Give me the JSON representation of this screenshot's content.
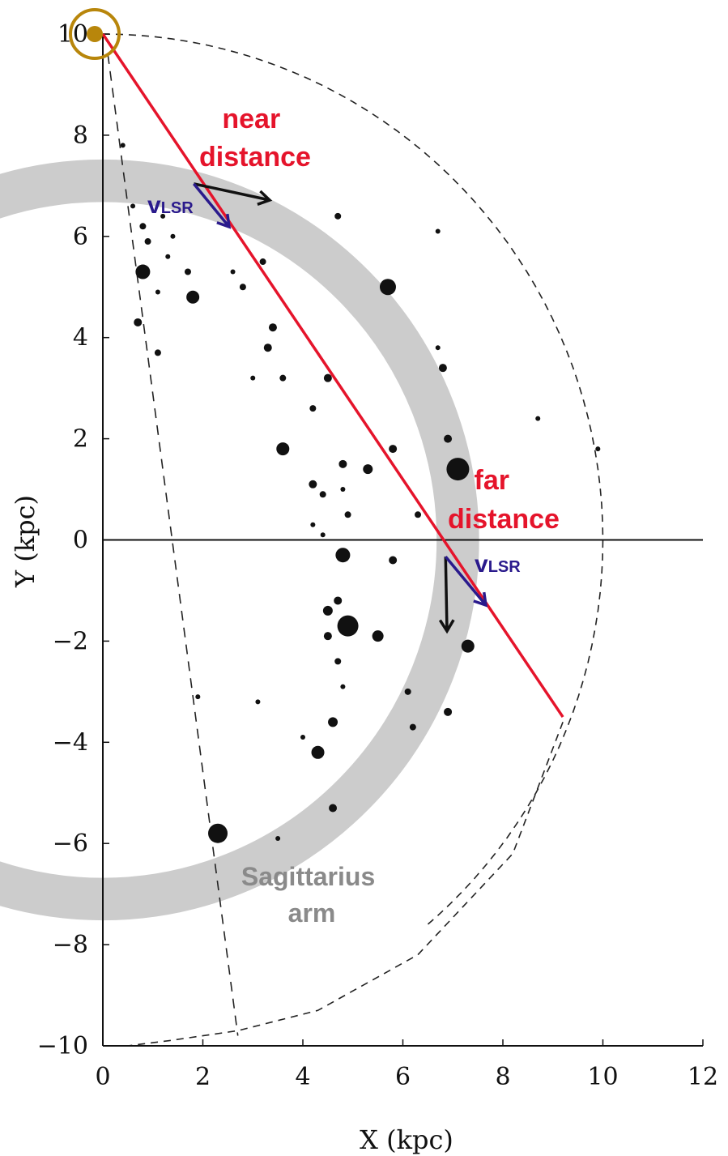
{
  "chart_data": {
    "type": "scatter",
    "xlabel": "X (kpc)",
    "ylabel": "Y (kpc)",
    "xlim": [
      0,
      12
    ],
    "ylim": [
      -10,
      10
    ],
    "x_ticks": [
      "0",
      "2",
      "4",
      "6",
      "8",
      "10",
      "12"
    ],
    "y_ticks": [
      "10",
      "8",
      "6",
      "4",
      "2",
      "0",
      "−2",
      "−4",
      "−6",
      "−8",
      "−10"
    ],
    "grid": false,
    "sun": {
      "x": 0,
      "y": 10
    },
    "sight_line": {
      "x1": 0,
      "y1": 10,
      "x2": 9.2,
      "y2": -3.5
    },
    "arm_radius_kpc": 7.1,
    "arm_width_kpc": 0.85,
    "outer_boundary_radius_kpc": 10,
    "annotations": {
      "near": "near\ndistance",
      "far": "far\ndistance",
      "vlsr_main": "v",
      "vlsr_sub": "LSR",
      "arm": "Sagittarius\narm"
    },
    "near_point": {
      "x": 1.9,
      "y": 7.2
    },
    "far_point": {
      "x": 7.0,
      "y": -0.25
    },
    "points": [
      {
        "x": 0.4,
        "y": 7.8,
        "s": 3
      },
      {
        "x": 0.6,
        "y": 6.6,
        "s": 3
      },
      {
        "x": 0.8,
        "y": 6.2,
        "s": 4
      },
      {
        "x": 1.2,
        "y": 6.4,
        "s": 3
      },
      {
        "x": 1.4,
        "y": 6.0,
        "s": 3
      },
      {
        "x": 0.9,
        "y": 5.9,
        "s": 4
      },
      {
        "x": 1.3,
        "y": 5.6,
        "s": 3
      },
      {
        "x": 0.8,
        "y": 5.3,
        "s": 9
      },
      {
        "x": 1.7,
        "y": 5.3,
        "s": 4
      },
      {
        "x": 1.1,
        "y": 4.9,
        "s": 3
      },
      {
        "x": 1.8,
        "y": 4.8,
        "s": 8
      },
      {
        "x": 2.6,
        "y": 5.3,
        "s": 3
      },
      {
        "x": 2.8,
        "y": 5.0,
        "s": 4
      },
      {
        "x": 3.2,
        "y": 5.5,
        "s": 4
      },
      {
        "x": 0.7,
        "y": 4.3,
        "s": 5
      },
      {
        "x": 1.1,
        "y": 3.7,
        "s": 4
      },
      {
        "x": 3.4,
        "y": 4.2,
        "s": 5
      },
      {
        "x": 3.3,
        "y": 3.8,
        "s": 5
      },
      {
        "x": 3.6,
        "y": 3.2,
        "s": 4
      },
      {
        "x": 4.5,
        "y": 3.2,
        "s": 5
      },
      {
        "x": 3.0,
        "y": 3.2,
        "s": 3
      },
      {
        "x": 4.2,
        "y": 2.6,
        "s": 4
      },
      {
        "x": 3.6,
        "y": 1.8,
        "s": 8
      },
      {
        "x": 4.8,
        "y": 1.5,
        "s": 5
      },
      {
        "x": 5.3,
        "y": 1.4,
        "s": 6
      },
      {
        "x": 5.8,
        "y": 1.8,
        "s": 5
      },
      {
        "x": 4.2,
        "y": 1.1,
        "s": 5
      },
      {
        "x": 4.4,
        "y": 0.9,
        "s": 4
      },
      {
        "x": 4.8,
        "y": 1.0,
        "s": 3
      },
      {
        "x": 4.9,
        "y": 0.5,
        "s": 4
      },
      {
        "x": 4.2,
        "y": 0.3,
        "s": 3
      },
      {
        "x": 4.4,
        "y": 0.1,
        "s": 3
      },
      {
        "x": 6.3,
        "y": 0.5,
        "s": 4
      },
      {
        "x": 5.7,
        "y": 5.0,
        "s": 10
      },
      {
        "x": 4.7,
        "y": 6.4,
        "s": 4
      },
      {
        "x": 6.9,
        "y": 2.0,
        "s": 5
      },
      {
        "x": 7.1,
        "y": 1.4,
        "s": 14
      },
      {
        "x": 6.8,
        "y": 3.4,
        "s": 5
      },
      {
        "x": 6.7,
        "y": 3.8,
        "s": 3
      },
      {
        "x": 6.7,
        "y": 6.1,
        "s": 3
      },
      {
        "x": 8.7,
        "y": 2.4,
        "s": 3
      },
      {
        "x": 9.9,
        "y": 1.8,
        "s": 3
      },
      {
        "x": 4.8,
        "y": -0.3,
        "s": 9
      },
      {
        "x": 5.8,
        "y": -0.4,
        "s": 5
      },
      {
        "x": 4.9,
        "y": -1.7,
        "s": 13
      },
      {
        "x": 4.5,
        "y": -1.4,
        "s": 6
      },
      {
        "x": 4.7,
        "y": -1.2,
        "s": 5
      },
      {
        "x": 4.5,
        "y": -1.9,
        "s": 5
      },
      {
        "x": 5.5,
        "y": -1.9,
        "s": 7
      },
      {
        "x": 4.7,
        "y": -2.4,
        "s": 4
      },
      {
        "x": 4.8,
        "y": -2.9,
        "s": 3
      },
      {
        "x": 6.1,
        "y": -3.0,
        "s": 4
      },
      {
        "x": 6.9,
        "y": -3.4,
        "s": 5
      },
      {
        "x": 7.3,
        "y": -2.1,
        "s": 8
      },
      {
        "x": 4.6,
        "y": -3.6,
        "s": 6
      },
      {
        "x": 4.3,
        "y": -4.2,
        "s": 8
      },
      {
        "x": 4.0,
        "y": -3.9,
        "s": 3
      },
      {
        "x": 6.2,
        "y": -3.7,
        "s": 4
      },
      {
        "x": 4.6,
        "y": -5.3,
        "s": 5
      },
      {
        "x": 2.3,
        "y": -5.8,
        "s": 12
      },
      {
        "x": 3.5,
        "y": -5.9,
        "s": 3
      },
      {
        "x": 1.9,
        "y": -3.1,
        "s": 3
      },
      {
        "x": 3.1,
        "y": -3.2,
        "s": 3
      }
    ]
  }
}
